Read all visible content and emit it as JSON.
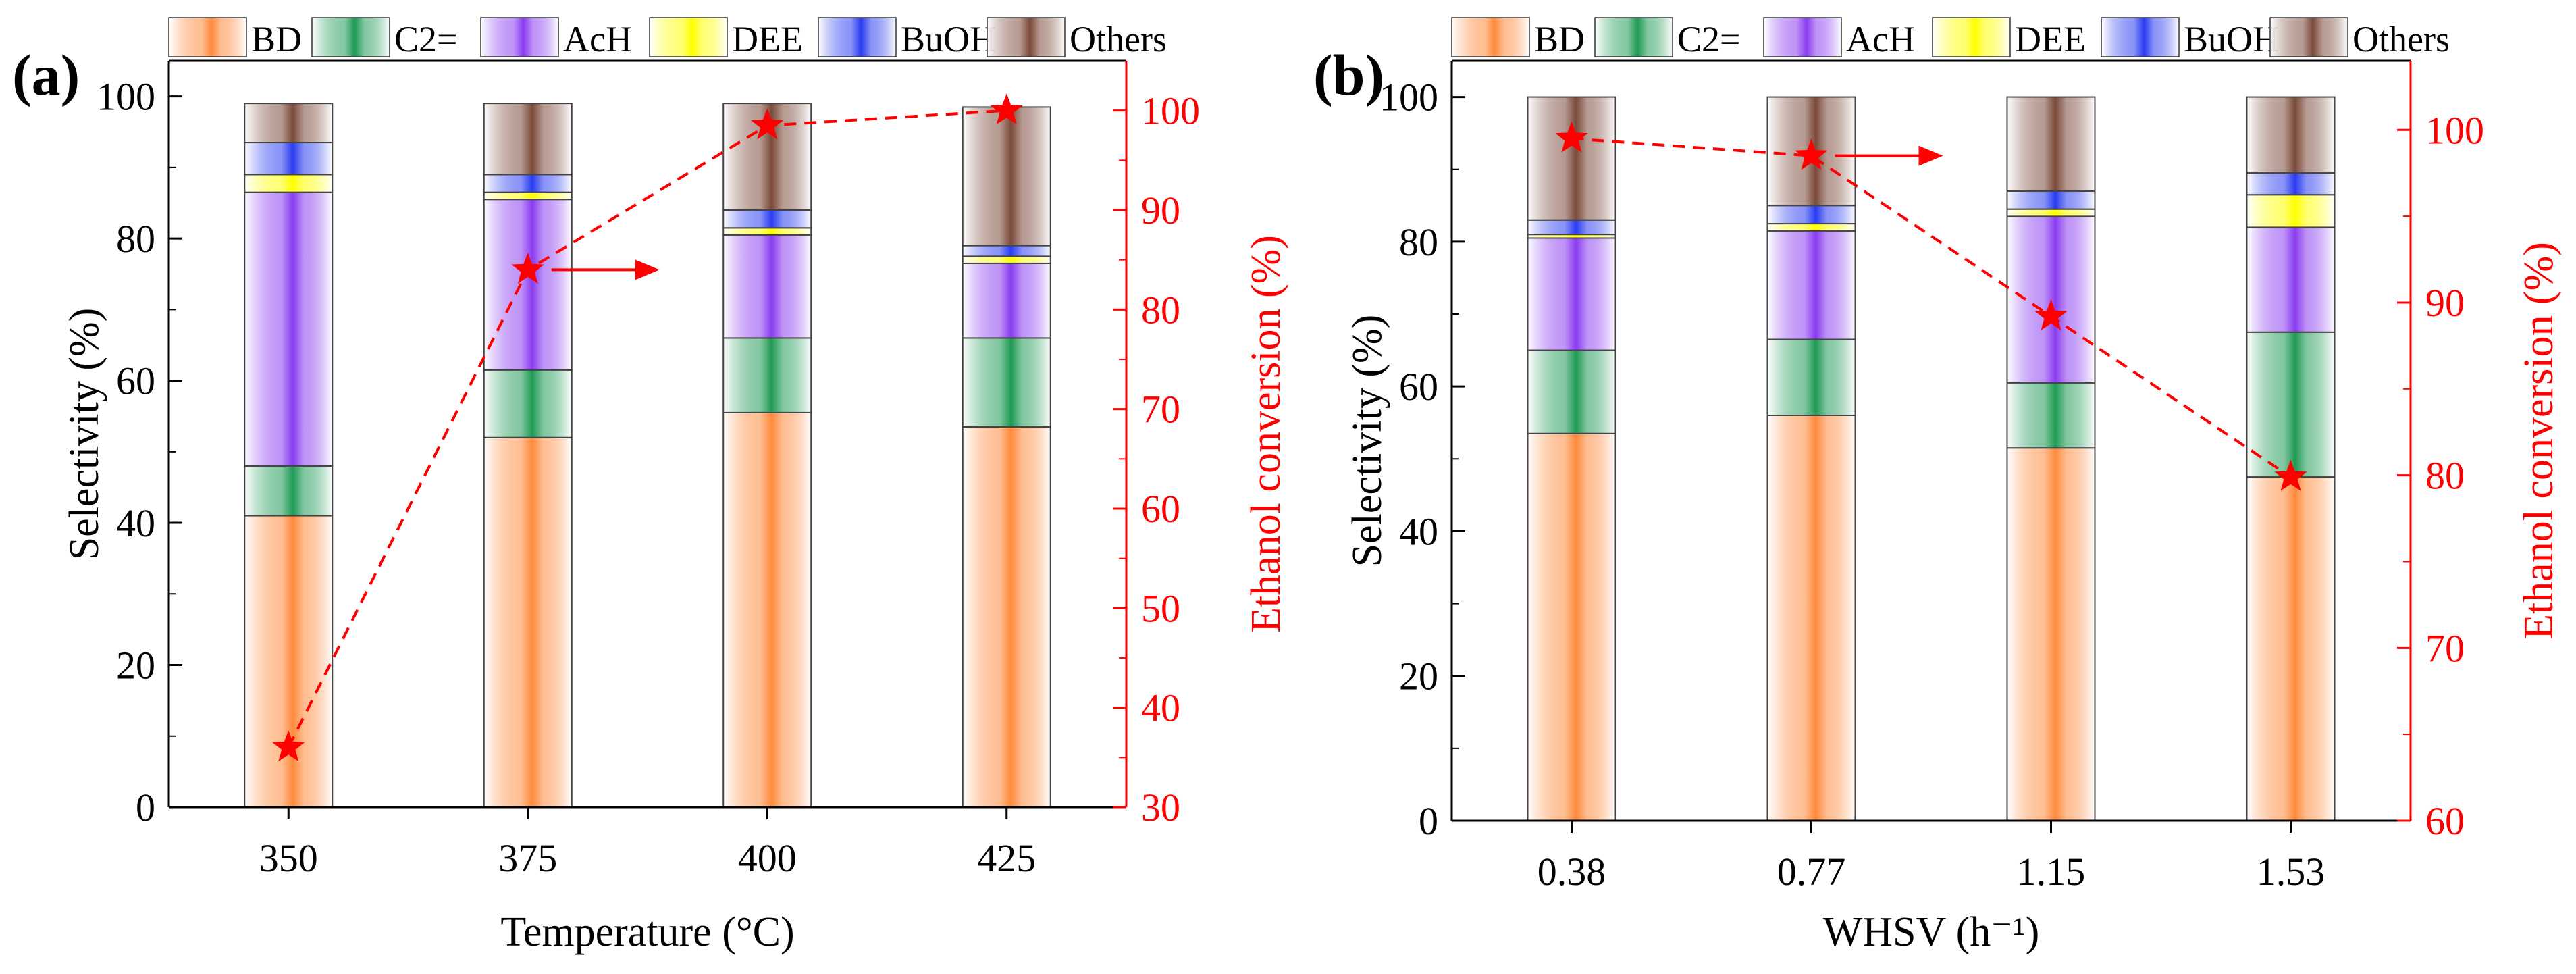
{
  "legend": {
    "entries": [
      {
        "name": "BD",
        "color": "#ff8a3c"
      },
      {
        "name": "C2=",
        "color": "#1f9a55"
      },
      {
        "name": "AcH",
        "color": "#8a3cf0"
      },
      {
        "name": "DEE",
        "color": "#ffff00"
      },
      {
        "name": "BuOH",
        "color": "#2a3cf0"
      },
      {
        "name": "Others",
        "color": "#7b4a3a"
      }
    ]
  },
  "colors": {
    "conversion": "#ff0000",
    "axis": "#000000"
  },
  "chart_data": [
    {
      "type": "bar",
      "stacked": true,
      "panel_label": "(a)",
      "categories": [
        "350",
        "375",
        "400",
        "425"
      ],
      "xlabel": "Temperature (°C)",
      "ylabel": "Selectivity (%)",
      "ylim": [
        0,
        105
      ],
      "yticks": [
        "0",
        "20",
        "40",
        "60",
        "80",
        "100"
      ],
      "series": [
        {
          "name": "BD",
          "values": [
            41,
            52,
            55.5,
            53.5
          ]
        },
        {
          "name": "C2=",
          "values": [
            7,
            9.5,
            10.5,
            12.5
          ]
        },
        {
          "name": "AcH",
          "values": [
            38.5,
            24,
            14.5,
            10.5
          ]
        },
        {
          "name": "DEE",
          "values": [
            2.5,
            1,
            1,
            1
          ]
        },
        {
          "name": "BuOH",
          "values": [
            4.5,
            2.5,
            2.5,
            1.5
          ]
        },
        {
          "name": "Others",
          "values": [
            5.5,
            10,
            15,
            19.5
          ]
        }
      ],
      "secondary_axis": {
        "ylabel": "Ethanol conversion (%)",
        "ylim": [
          30,
          105
        ],
        "yticks": [
          "30",
          "40",
          "50",
          "60",
          "70",
          "80",
          "90",
          "100"
        ],
        "series": {
          "name": "Ethanol conversion",
          "type": "line",
          "marker": "star",
          "dashed": true,
          "values": [
            36,
            84,
            98.5,
            100
          ]
        },
        "arrow_at_category": "375"
      }
    },
    {
      "type": "bar",
      "stacked": true,
      "panel_label": "(b)",
      "categories": [
        "0.38",
        "0.77",
        "1.15",
        "1.53"
      ],
      "xlabel": "WHSV (h⁻¹)",
      "ylabel": "Selectivity (%)",
      "ylim": [
        0,
        105
      ],
      "yticks": [
        "0",
        "20",
        "40",
        "60",
        "80",
        "100"
      ],
      "series": [
        {
          "name": "BD",
          "values": [
            53.5,
            56,
            51.5,
            47.5
          ]
        },
        {
          "name": "C2=",
          "values": [
            11.5,
            10.5,
            9,
            20
          ]
        },
        {
          "name": "AcH",
          "values": [
            15.5,
            15,
            23,
            14.5
          ]
        },
        {
          "name": "DEE",
          "values": [
            0.5,
            1,
            1,
            4.5
          ]
        },
        {
          "name": "BuOH",
          "values": [
            2,
            2.5,
            2.5,
            3
          ]
        },
        {
          "name": "Others",
          "values": [
            17,
            15,
            13,
            10.5
          ]
        }
      ],
      "secondary_axis": {
        "ylabel": "Ethanol conversion (%)",
        "ylim": [
          60,
          104
        ],
        "yticks": [
          "60",
          "70",
          "80",
          "90",
          "100"
        ],
        "series": {
          "name": "Ethanol conversion",
          "type": "line",
          "marker": "star",
          "dashed": true,
          "values": [
            99.5,
            98.5,
            89.2,
            79.9
          ]
        },
        "arrow_at_category": "0.77"
      }
    }
  ]
}
